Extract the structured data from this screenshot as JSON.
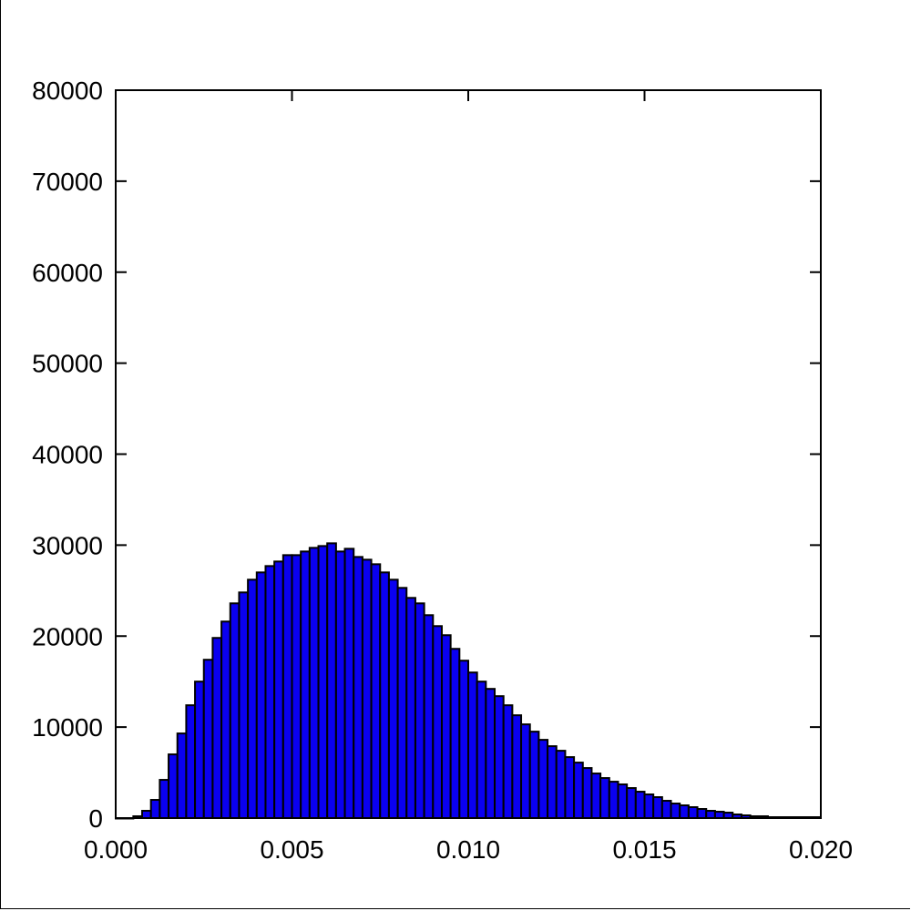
{
  "chart_data": {
    "type": "bar",
    "title": "",
    "xlabel": "",
    "ylabel": "",
    "xlim": [
      0.0,
      0.02
    ],
    "ylim": [
      0,
      80000
    ],
    "bar_color": "#0a00f0",
    "edge_color": "#000000",
    "x_ticks": [
      {
        "value": 0.0,
        "label": "0.000"
      },
      {
        "value": 0.005,
        "label": "0.005"
      },
      {
        "value": 0.01,
        "label": "0.010"
      },
      {
        "value": 0.015,
        "label": "0.015"
      },
      {
        "value": 0.02,
        "label": "0.020"
      }
    ],
    "y_ticks": [
      {
        "value": 0,
        "label": "0"
      },
      {
        "value": 10000,
        "label": "10000"
      },
      {
        "value": 20000,
        "label": "20000"
      },
      {
        "value": 30000,
        "label": "30000"
      },
      {
        "value": 40000,
        "label": "40000"
      },
      {
        "value": 50000,
        "label": "50000"
      },
      {
        "value": 60000,
        "label": "60000"
      },
      {
        "value": 70000,
        "label": "70000"
      },
      {
        "value": 80000,
        "label": "80000"
      }
    ],
    "bin_width": 0.00025,
    "bins_start": [
      0.0,
      0.00025,
      0.0005,
      0.00075,
      0.001,
      0.00125,
      0.0015,
      0.00175,
      0.002,
      0.00225,
      0.0025,
      0.00275,
      0.003,
      0.00325,
      0.0035,
      0.00375,
      0.004,
      0.00425,
      0.0045,
      0.00475,
      0.005,
      0.00525,
      0.0055,
      0.00575,
      0.006,
      0.00625,
      0.0065,
      0.00675,
      0.007,
      0.00725,
      0.0075,
      0.00775,
      0.008,
      0.00825,
      0.0085,
      0.00875,
      0.009,
      0.00925,
      0.0095,
      0.00975,
      0.01,
      0.01025,
      0.0105,
      0.01075,
      0.011,
      0.01125,
      0.0115,
      0.01175,
      0.012,
      0.01225,
      0.0125,
      0.01275,
      0.013,
      0.01325,
      0.0135,
      0.01375,
      0.014,
      0.01425,
      0.0145,
      0.01475,
      0.015,
      0.01525,
      0.0155,
      0.01575,
      0.016,
      0.01625,
      0.0165,
      0.01675,
      0.017,
      0.01725,
      0.0175,
      0.01775,
      0.018,
      0.01825,
      0.0185,
      0.01875,
      0.019,
      0.01925,
      0.0195,
      0.01975
    ],
    "values": [
      0,
      0,
      200,
      800,
      2000,
      4200,
      7000,
      9300,
      12400,
      15000,
      17400,
      19800,
      21600,
      23600,
      24800,
      26200,
      27000,
      27700,
      28200,
      28900,
      28900,
      29300,
      29700,
      29900,
      30200,
      29300,
      29600,
      28700,
      28400,
      27900,
      27000,
      26200,
      25300,
      24200,
      23600,
      22300,
      21100,
      20100,
      18600,
      17300,
      16000,
      15000,
      14200,
      13400,
      12400,
      11300,
      10300,
      9500,
      8600,
      7900,
      7400,
      6700,
      6100,
      5500,
      4900,
      4400,
      4000,
      3700,
      3300,
      2900,
      2600,
      2300,
      1900,
      1600,
      1400,
      1200,
      1000,
      800,
      700,
      600,
      400,
      300,
      200,
      200,
      100,
      100,
      100,
      100,
      100,
      100
    ]
  }
}
